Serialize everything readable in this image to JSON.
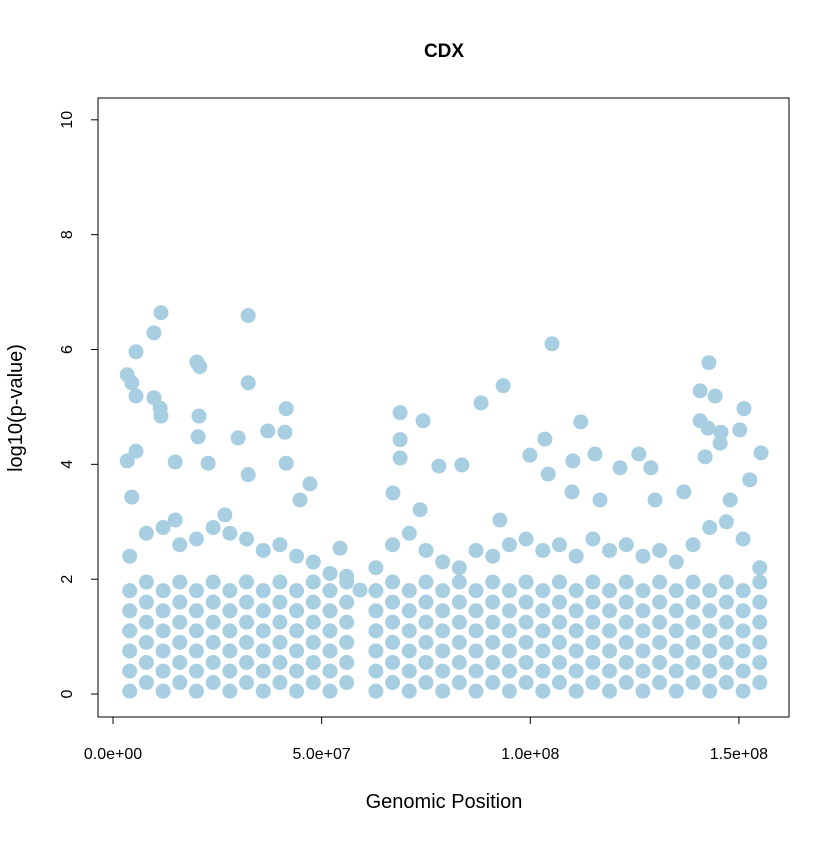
{
  "chart_data": {
    "type": "scatter",
    "title": "CDX",
    "x_label": "Genomic Position",
    "y_label": "log10(p-value)",
    "color": "#a8cee2",
    "xlim": [
      -3600000.0,
      162000000.0
    ],
    "ylim": [
      -0.4,
      10.38
    ],
    "xticks": [
      {
        "value": 0,
        "label": "0.0e+00"
      },
      {
        "value": 50000000.0,
        "label": "5.0e+07"
      },
      {
        "value": 100000000.0,
        "label": "1.0e+08"
      },
      {
        "value": 150000000.0,
        "label": "1.5e+08"
      }
    ],
    "yticks": [
      0,
      2,
      4,
      6,
      8,
      10
    ],
    "x": [
      4000000.0,
      4000000.0,
      4000000.0,
      4000000.0,
      4000000.0,
      4000000.0,
      4000000.0,
      8000000.0,
      8000000.0,
      8000000.0,
      8000000.0,
      8000000.0,
      8000000.0,
      8000000.0,
      12000000.0,
      12000000.0,
      12000000.0,
      12000000.0,
      12000000.0,
      12000000.0,
      12000000.0,
      16000000.0,
      16000000.0,
      16000000.0,
      16000000.0,
      16000000.0,
      16000000.0,
      16000000.0,
      20000000.0,
      20000000.0,
      20000000.0,
      20000000.0,
      20000000.0,
      20000000.0,
      20000000.0,
      24000000.0,
      24000000.0,
      24000000.0,
      24000000.0,
      24000000.0,
      24000000.0,
      24000000.0,
      28000000.0,
      28000000.0,
      28000000.0,
      28000000.0,
      28000000.0,
      28000000.0,
      28000000.0,
      32000000.0,
      32000000.0,
      32000000.0,
      32000000.0,
      32000000.0,
      32000000.0,
      32000000.0,
      36000000.0,
      36000000.0,
      36000000.0,
      36000000.0,
      36000000.0,
      36000000.0,
      36000000.0,
      40000000.0,
      40000000.0,
      40000000.0,
      40000000.0,
      40000000.0,
      40000000.0,
      40000000.0,
      44000000.0,
      44000000.0,
      44000000.0,
      44000000.0,
      44000000.0,
      44000000.0,
      44000000.0,
      48000000.0,
      48000000.0,
      48000000.0,
      48000000.0,
      48000000.0,
      48000000.0,
      48000000.0,
      52000000.0,
      52000000.0,
      52000000.0,
      52000000.0,
      52000000.0,
      52000000.0,
      52000000.0,
      56000000.0,
      56000000.0,
      56000000.0,
      56000000.0,
      56000000.0,
      56000000.0,
      56000000.0,
      63000000.0,
      63000000.0,
      63000000.0,
      63000000.0,
      63000000.0,
      63000000.0,
      63000000.0,
      67000000.0,
      67000000.0,
      67000000.0,
      67000000.0,
      67000000.0,
      67000000.0,
      67000000.0,
      71000000.0,
      71000000.0,
      71000000.0,
      71000000.0,
      71000000.0,
      71000000.0,
      71000000.0,
      75000000.0,
      75000000.0,
      75000000.0,
      75000000.0,
      75000000.0,
      75000000.0,
      75000000.0,
      79000000.0,
      79000000.0,
      79000000.0,
      79000000.0,
      79000000.0,
      79000000.0,
      79000000.0,
      83000000.0,
      83000000.0,
      83000000.0,
      83000000.0,
      83000000.0,
      83000000.0,
      83000000.0,
      87000000.0,
      87000000.0,
      87000000.0,
      87000000.0,
      87000000.0,
      87000000.0,
      87000000.0,
      91000000.0,
      91000000.0,
      91000000.0,
      91000000.0,
      91000000.0,
      91000000.0,
      91000000.0,
      95000000.0,
      95000000.0,
      95000000.0,
      95000000.0,
      95000000.0,
      95000000.0,
      95000000.0,
      99000000.0,
      99000000.0,
      99000000.0,
      99000000.0,
      99000000.0,
      99000000.0,
      99000000.0,
      103000000.0,
      103000000.0,
      103000000.0,
      103000000.0,
      103000000.0,
      103000000.0,
      103000000.0,
      107000000.0,
      107000000.0,
      107000000.0,
      107000000.0,
      107000000.0,
      107000000.0,
      107000000.0,
      111000000.0,
      111000000.0,
      111000000.0,
      111000000.0,
      111000000.0,
      111000000.0,
      111000000.0,
      115000000.0,
      115000000.0,
      115000000.0,
      115000000.0,
      115000000.0,
      115000000.0,
      115000000.0,
      119000000.0,
      119000000.0,
      119000000.0,
      119000000.0,
      119000000.0,
      119000000.0,
      119000000.0,
      123000000.0,
      123000000.0,
      123000000.0,
      123000000.0,
      123000000.0,
      123000000.0,
      123000000.0,
      127000000.0,
      127000000.0,
      127000000.0,
      127000000.0,
      127000000.0,
      127000000.0,
      127000000.0,
      131000000.0,
      131000000.0,
      131000000.0,
      131000000.0,
      131000000.0,
      131000000.0,
      131000000.0,
      135000000.0,
      135000000.0,
      135000000.0,
      135000000.0,
      135000000.0,
      135000000.0,
      135000000.0,
      139000000.0,
      139000000.0,
      139000000.0,
      139000000.0,
      139000000.0,
      139000000.0,
      139000000.0,
      143000000.0,
      143000000.0,
      143000000.0,
      143000000.0,
      143000000.0,
      143000000.0,
      143000000.0,
      147000000.0,
      147000000.0,
      147000000.0,
      147000000.0,
      147000000.0,
      147000000.0,
      147000000.0,
      151000000.0,
      151000000.0,
      151000000.0,
      151000000.0,
      151000000.0,
      151000000.0,
      151000000.0,
      155000000.0,
      155000000.0,
      155000000.0,
      155000000.0,
      155000000.0,
      155000000.0,
      155000000.0,
      3400000.0,
      4500000.0,
      5500000.0,
      5500000.0,
      3400000.0,
      5500000.0,
      11500000.0,
      9800000.0,
      9800000.0,
      11500000.0,
      11300000.0,
      14900000.0,
      20100000.0,
      20800000.0,
      20600000.0,
      20400000.0,
      22800000.0,
      32400000.0,
      32400000.0,
      30000000.0,
      37100000.0,
      41500000.0,
      41200000.0,
      41500000.0,
      32400000.0,
      47200000.0,
      68800000.0,
      68800000.0,
      68800000.0,
      74300000.0,
      78100000.0,
      83600000.0,
      88200000.0,
      93500000.0,
      105200000.0,
      103500000.0,
      99900000.0,
      112100000.0,
      110200000.0,
      115500000.0,
      126000000.0,
      121500000.0,
      128900000.0,
      140700000.0,
      142800000.0,
      144300000.0,
      151200000.0,
      150200000.0,
      142600000.0,
      145700000.0,
      155300000.0,
      140700000.0,
      141900000.0,
      145500000.0,
      136800000.0,
      110000000.0,
      104300000.0,
      67100000.0,
      73600000.0,
      4500000.0,
      44800000.0,
      26800000.0,
      152600000.0,
      129900000.0,
      116700000.0,
      92700000.0,
      147900000.0,
      14900000.0,
      54400000.0,
      59200000.0
    ],
    "values": [
      0.05,
      0.4,
      0.75,
      1.1,
      1.45,
      1.8,
      2.4,
      0.2,
      0.55,
      0.9,
      1.25,
      1.6,
      1.95,
      2.8,
      0.05,
      0.4,
      0.75,
      1.1,
      1.45,
      1.8,
      2.9,
      0.2,
      0.55,
      0.9,
      1.25,
      1.6,
      1.95,
      2.6,
      0.05,
      0.4,
      0.75,
      1.1,
      1.45,
      1.8,
      2.7,
      0.2,
      0.55,
      0.9,
      1.25,
      1.6,
      1.95,
      2.9,
      0.05,
      0.4,
      0.75,
      1.1,
      1.45,
      1.8,
      2.8,
      0.2,
      0.55,
      0.9,
      1.25,
      1.6,
      1.95,
      2.7,
      0.05,
      0.4,
      0.75,
      1.1,
      1.45,
      1.8,
      2.5,
      0.2,
      0.55,
      0.9,
      1.25,
      1.6,
      1.95,
      2.6,
      0.05,
      0.4,
      0.75,
      1.1,
      1.45,
      1.8,
      2.4,
      0.2,
      0.55,
      0.9,
      1.25,
      1.6,
      1.95,
      2.3,
      0.05,
      0.4,
      0.75,
      1.1,
      1.45,
      1.8,
      2.1,
      0.2,
      0.55,
      0.9,
      1.25,
      1.6,
      1.95,
      2.05,
      0.05,
      0.4,
      0.75,
      1.1,
      1.45,
      1.8,
      2.2,
      0.2,
      0.55,
      0.9,
      1.25,
      1.6,
      1.95,
      2.6,
      0.05,
      0.4,
      0.75,
      1.1,
      1.45,
      1.8,
      2.8,
      0.2,
      0.55,
      0.9,
      1.25,
      1.6,
      1.95,
      2.5,
      0.05,
      0.4,
      0.75,
      1.1,
      1.45,
      1.8,
      2.3,
      0.2,
      0.55,
      0.9,
      1.25,
      1.6,
      1.95,
      2.2,
      0.05,
      0.4,
      0.75,
      1.1,
      1.45,
      1.8,
      2.5,
      0.2,
      0.55,
      0.9,
      1.25,
      1.6,
      1.95,
      2.4,
      0.05,
      0.4,
      0.75,
      1.1,
      1.45,
      1.8,
      2.6,
      0.2,
      0.55,
      0.9,
      1.25,
      1.6,
      1.95,
      2.7,
      0.05,
      0.4,
      0.75,
      1.1,
      1.45,
      1.8,
      2.5,
      0.2,
      0.55,
      0.9,
      1.25,
      1.6,
      1.95,
      2.6,
      0.05,
      0.4,
      0.75,
      1.1,
      1.45,
      1.8,
      2.4,
      0.2,
      0.55,
      0.9,
      1.25,
      1.6,
      1.95,
      2.7,
      0.05,
      0.4,
      0.75,
      1.1,
      1.45,
      1.8,
      2.5,
      0.2,
      0.55,
      0.9,
      1.25,
      1.6,
      1.95,
      2.6,
      0.05,
      0.4,
      0.75,
      1.1,
      1.45,
      1.8,
      2.4,
      0.2,
      0.55,
      0.9,
      1.25,
      1.6,
      1.95,
      2.5,
      0.05,
      0.4,
      0.75,
      1.1,
      1.45,
      1.8,
      2.3,
      0.2,
      0.55,
      0.9,
      1.25,
      1.6,
      1.95,
      2.6,
      0.05,
      0.4,
      0.75,
      1.1,
      1.45,
      1.8,
      2.9,
      0.2,
      0.55,
      0.9,
      1.25,
      1.6,
      1.95,
      3.0,
      0.05,
      0.4,
      0.75,
      1.1,
      1.45,
      1.8,
      2.7,
      0.2,
      0.55,
      0.9,
      1.25,
      1.6,
      1.95,
      2.2,
      5.56,
      5.42,
      5.19,
      5.96,
      4.06,
      4.23,
      6.64,
      6.29,
      5.16,
      4.84,
      4.98,
      4.04,
      5.78,
      5.7,
      4.84,
      4.48,
      4.02,
      6.59,
      5.42,
      4.46,
      4.58,
      4.97,
      4.56,
      4.02,
      3.82,
      3.66,
      4.9,
      4.43,
      4.11,
      4.76,
      3.97,
      3.99,
      5.07,
      5.37,
      6.1,
      4.44,
      4.16,
      4.74,
      4.06,
      4.18,
      4.18,
      3.94,
      3.94,
      5.28,
      5.77,
      5.19,
      4.97,
      4.6,
      4.63,
      4.56,
      4.2,
      4.76,
      4.13,
      4.37,
      3.52,
      3.52,
      3.83,
      3.5,
      3.21,
      3.43,
      3.38,
      3.12,
      3.73,
      3.38,
      3.38,
      3.03,
      3.38,
      3.03,
      2.54,
      1.81
    ]
  }
}
